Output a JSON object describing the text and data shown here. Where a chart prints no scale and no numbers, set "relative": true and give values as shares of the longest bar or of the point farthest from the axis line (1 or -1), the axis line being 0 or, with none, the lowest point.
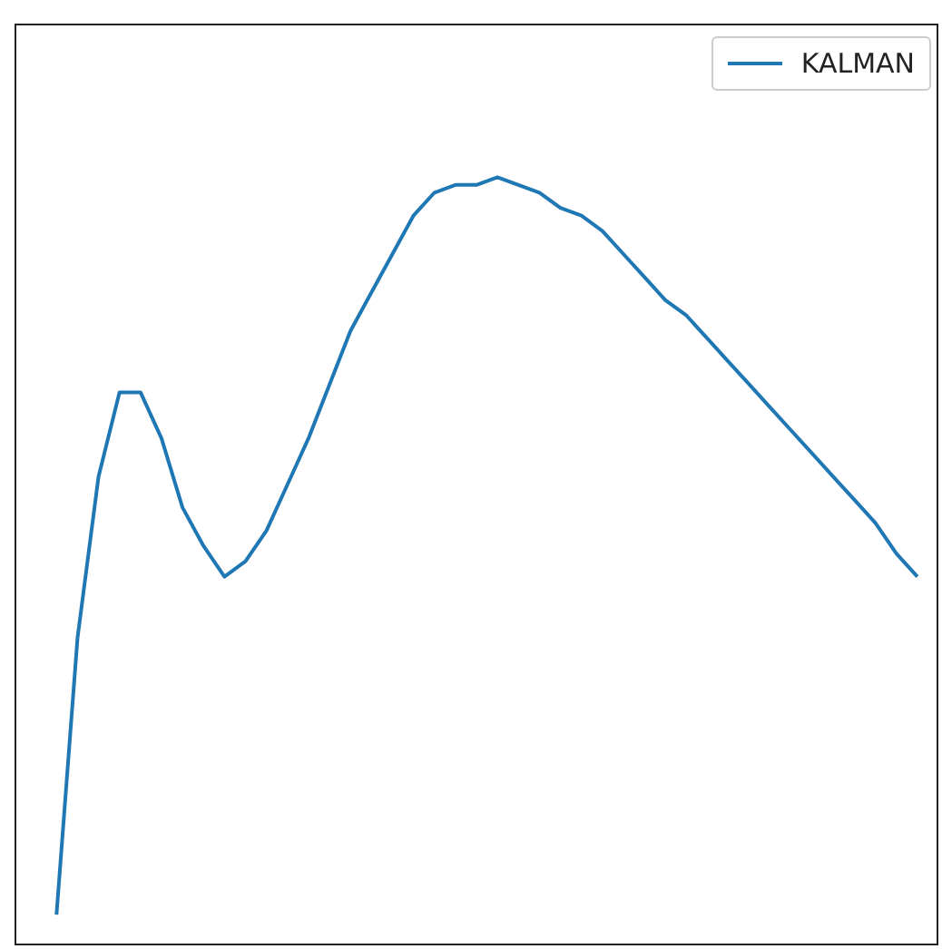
{
  "chart_data": {
    "type": "line",
    "relative": true,
    "legend": "top right",
    "categories": [
      null,
      null,
      null,
      null,
      null,
      null,
      null,
      null,
      null,
      null,
      null,
      null,
      null,
      null,
      null,
      null,
      null,
      null,
      null,
      null,
      null,
      null,
      null,
      null,
      null,
      null,
      null,
      null,
      null,
      null,
      null,
      null,
      null,
      null,
      null,
      null,
      null,
      null,
      null,
      null,
      null,
      null,
      null,
      null,
      null
    ],
    "series": [
      {
        "name": "KALMAN",
        "color": "#1f77b4",
        "values": [
          null,
          null,
          0.04,
          0.4,
          0.61,
          0.72,
          0.72,
          0.66,
          0.57,
          0.52,
          0.48,
          0.5,
          0.54,
          0.6,
          0.66,
          0.73,
          0.8,
          0.85,
          0.9,
          0.95,
          0.98,
          0.99,
          0.99,
          1.0,
          0.99,
          0.98,
          0.96,
          0.95,
          0.93,
          0.9,
          0.87,
          0.84,
          0.82,
          0.79,
          0.76,
          0.73,
          0.7,
          0.67,
          0.64,
          0.61,
          0.58,
          0.55,
          0.51,
          0.48,
          null
        ]
      }
    ]
  }
}
